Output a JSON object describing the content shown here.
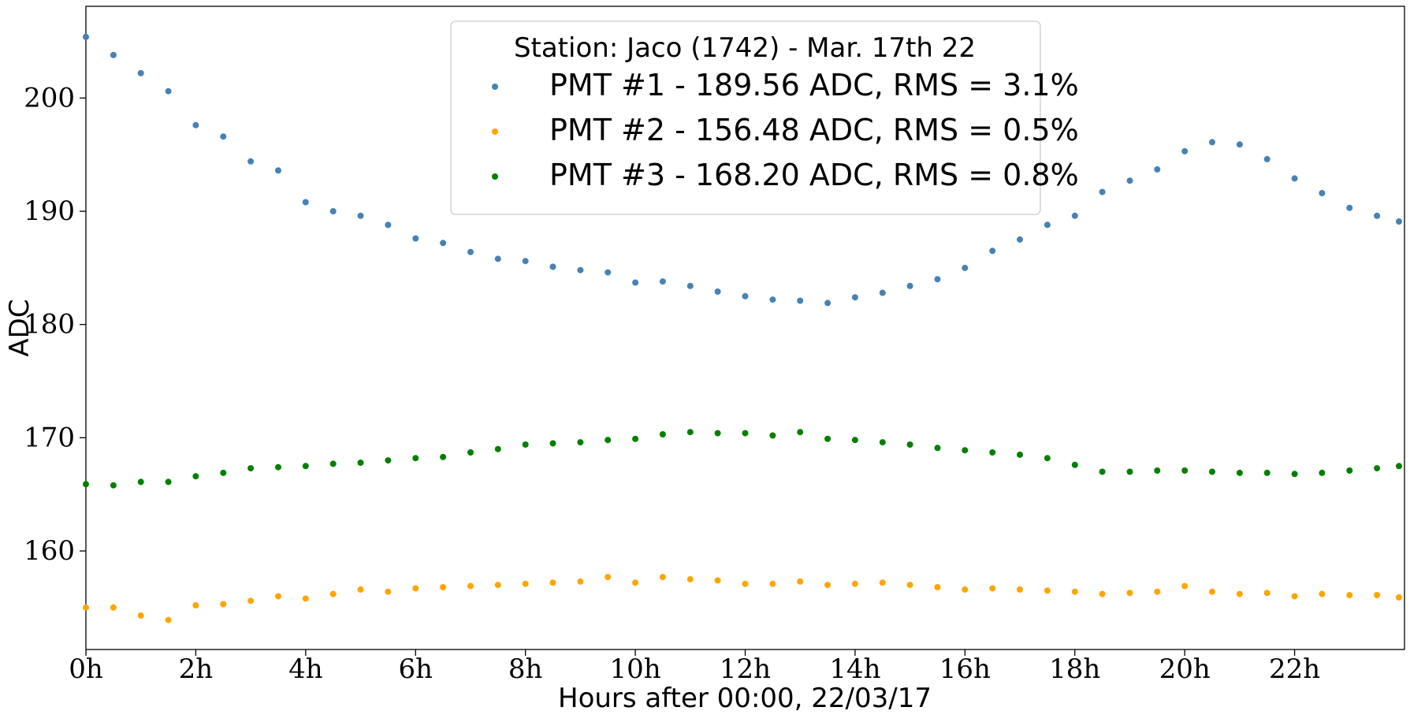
{
  "chart_data": {
    "type": "scatter",
    "title": "",
    "xlabel": "Hours after 00:00, 22/03/17",
    "ylabel": "ADC",
    "xlim": [
      0,
      24
    ],
    "ylim": [
      151.3,
      208.1
    ],
    "x_ticks": [
      {
        "value": 0,
        "label": "0h"
      },
      {
        "value": 2,
        "label": "2h"
      },
      {
        "value": 4,
        "label": "4h"
      },
      {
        "value": 6,
        "label": "6h"
      },
      {
        "value": 8,
        "label": "8h"
      },
      {
        "value": 10,
        "label": "10h"
      },
      {
        "value": 12,
        "label": "12h"
      },
      {
        "value": 14,
        "label": "14h"
      },
      {
        "value": 16,
        "label": "16h"
      },
      {
        "value": 18,
        "label": "18h"
      },
      {
        "value": 20,
        "label": "20h"
      },
      {
        "value": 22,
        "label": "22h"
      }
    ],
    "y_ticks": [
      {
        "value": 160,
        "label": "160"
      },
      {
        "value": 170,
        "label": "170"
      },
      {
        "value": 180,
        "label": "180"
      },
      {
        "value": 190,
        "label": "190"
      },
      {
        "value": 200,
        "label": "200"
      }
    ],
    "grid": false,
    "legend": {
      "placement": "top-center",
      "title": "Station: Jaco (1742) - Mar. 17th 22"
    },
    "series": [
      {
        "name": "PMT #1 - 189.56 ADC, RMS = 3.1%",
        "color": "#4682b4",
        "points": [
          [
            0,
            205.4
          ],
          [
            0.5,
            203.8
          ],
          [
            1,
            202.2
          ],
          [
            1.5,
            200.6
          ],
          [
            2,
            197.6
          ],
          [
            2.5,
            196.6
          ],
          [
            3,
            194.4
          ],
          [
            3.5,
            193.6
          ],
          [
            4,
            190.8
          ],
          [
            4.5,
            190
          ],
          [
            5,
            189.6
          ],
          [
            5.5,
            188.8
          ],
          [
            6,
            187.6
          ],
          [
            6.5,
            187.2
          ],
          [
            7,
            186.4
          ],
          [
            7.5,
            185.8
          ],
          [
            8,
            185.6
          ],
          [
            8.5,
            185.1
          ],
          [
            9,
            184.8
          ],
          [
            9.5,
            184.6
          ],
          [
            10,
            183.7
          ],
          [
            10.5,
            183.8
          ],
          [
            11,
            183.4
          ],
          [
            11.5,
            182.9
          ],
          [
            12,
            182.5
          ],
          [
            12.5,
            182.2
          ],
          [
            13,
            182.1
          ],
          [
            13.5,
            181.9
          ],
          [
            14,
            182.4
          ],
          [
            14.5,
            182.8
          ],
          [
            15,
            183.4
          ],
          [
            15.5,
            184
          ],
          [
            16,
            185
          ],
          [
            16.5,
            186.5
          ],
          [
            17,
            187.5
          ],
          [
            17.5,
            188.8
          ],
          [
            18,
            189.6
          ],
          [
            18.5,
            191.7
          ],
          [
            19,
            192.7
          ],
          [
            19.5,
            193.7
          ],
          [
            20,
            195.3
          ],
          [
            20.5,
            196.1
          ],
          [
            21,
            195.9
          ],
          [
            21.5,
            194.6
          ],
          [
            22,
            192.9
          ],
          [
            22.5,
            191.6
          ],
          [
            23,
            190.3
          ],
          [
            23.5,
            189.6
          ],
          [
            23.9,
            189.1
          ]
        ]
      },
      {
        "name": "PMT #2 - 156.48 ADC, RMS = 0.5%",
        "color": "#ffa500",
        "points": [
          [
            0,
            155
          ],
          [
            0.5,
            155
          ],
          [
            1,
            154.3
          ],
          [
            1.5,
            153.9
          ],
          [
            2,
            155.2
          ],
          [
            2.5,
            155.3
          ],
          [
            3,
            155.6
          ],
          [
            3.5,
            156
          ],
          [
            4,
            155.8
          ],
          [
            4.5,
            156.2
          ],
          [
            5,
            156.6
          ],
          [
            5.5,
            156.4
          ],
          [
            6,
            156.7
          ],
          [
            6.5,
            156.8
          ],
          [
            7,
            156.9
          ],
          [
            7.5,
            157
          ],
          [
            8,
            157.1
          ],
          [
            8.5,
            157.2
          ],
          [
            9,
            157.3
          ],
          [
            9.5,
            157.7
          ],
          [
            10,
            157.2
          ],
          [
            10.5,
            157.7
          ],
          [
            11,
            157.5
          ],
          [
            11.5,
            157.4
          ],
          [
            12,
            157.1
          ],
          [
            12.5,
            157.1
          ],
          [
            13,
            157.3
          ],
          [
            13.5,
            157
          ],
          [
            14,
            157.1
          ],
          [
            14.5,
            157.2
          ],
          [
            15,
            157
          ],
          [
            15.5,
            156.8
          ],
          [
            16,
            156.6
          ],
          [
            16.5,
            156.7
          ],
          [
            17,
            156.6
          ],
          [
            17.5,
            156.5
          ],
          [
            18,
            156.4
          ],
          [
            18.5,
            156.2
          ],
          [
            19,
            156.3
          ],
          [
            19.5,
            156.4
          ],
          [
            20,
            156.9
          ],
          [
            20.5,
            156.4
          ],
          [
            21,
            156.2
          ],
          [
            21.5,
            156.3
          ],
          [
            22,
            156
          ],
          [
            22.5,
            156.2
          ],
          [
            23,
            156.1
          ],
          [
            23.5,
            156.1
          ],
          [
            23.9,
            155.9
          ]
        ]
      },
      {
        "name": "PMT #3 - 168.20 ADC, RMS = 0.8%",
        "color": "#008000",
        "points": [
          [
            0,
            165.9
          ],
          [
            0.5,
            165.8
          ],
          [
            1,
            166.1
          ],
          [
            1.5,
            166.1
          ],
          [
            2,
            166.6
          ],
          [
            2.5,
            166.9
          ],
          [
            3,
            167.3
          ],
          [
            3.5,
            167.4
          ],
          [
            4,
            167.5
          ],
          [
            4.5,
            167.7
          ],
          [
            5,
            167.8
          ],
          [
            5.5,
            168
          ],
          [
            6,
            168.2
          ],
          [
            6.5,
            168.3
          ],
          [
            7,
            168.7
          ],
          [
            7.5,
            169
          ],
          [
            8,
            169.4
          ],
          [
            8.5,
            169.5
          ],
          [
            9,
            169.6
          ],
          [
            9.5,
            169.8
          ],
          [
            10,
            169.9
          ],
          [
            10.5,
            170.3
          ],
          [
            11,
            170.5
          ],
          [
            11.5,
            170.4
          ],
          [
            12,
            170.4
          ],
          [
            12.5,
            170.2
          ],
          [
            13,
            170.5
          ],
          [
            13.5,
            169.9
          ],
          [
            14,
            169.8
          ],
          [
            14.5,
            169.6
          ],
          [
            15,
            169.4
          ],
          [
            15.5,
            169.1
          ],
          [
            16,
            168.9
          ],
          [
            16.5,
            168.7
          ],
          [
            17,
            168.5
          ],
          [
            17.5,
            168.2
          ],
          [
            18,
            167.6
          ],
          [
            18.5,
            167
          ],
          [
            19,
            167
          ],
          [
            19.5,
            167.1
          ],
          [
            20,
            167.1
          ],
          [
            20.5,
            167
          ],
          [
            21,
            166.9
          ],
          [
            21.5,
            166.9
          ],
          [
            22,
            166.8
          ],
          [
            22.5,
            166.9
          ],
          [
            23,
            167.1
          ],
          [
            23.5,
            167.3
          ],
          [
            23.9,
            167.5
          ]
        ]
      }
    ]
  }
}
